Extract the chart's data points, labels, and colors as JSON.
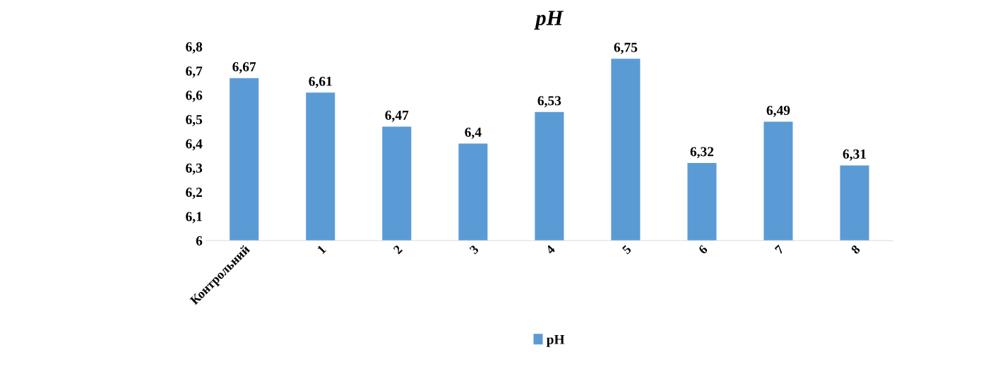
{
  "chart_data": {
    "type": "bar",
    "title": "pH",
    "categories": [
      "Контрольний",
      "1",
      "2",
      "3",
      "4",
      "5",
      "6",
      "7",
      "8"
    ],
    "series": [
      {
        "name": "pH",
        "color": "#5b9bd5",
        "values": [
          6.67,
          6.61,
          6.47,
          6.4,
          6.53,
          6.75,
          6.32,
          6.49,
          6.31
        ],
        "value_labels": [
          "6,67",
          "6,61",
          "6,47",
          "6,4",
          "6,53",
          "6,75",
          "6,32",
          "6,49",
          "6,31"
        ]
      }
    ],
    "ylim": [
      6,
      6.8
    ],
    "yticks": [
      {
        "value": 6,
        "label": "6"
      },
      {
        "value": 6.1,
        "label": "6,1"
      },
      {
        "value": 6.2,
        "label": "6,2"
      },
      {
        "value": 6.3,
        "label": "6,3"
      },
      {
        "value": 6.4,
        "label": "6,4"
      },
      {
        "value": 6.5,
        "label": "6,5"
      },
      {
        "value": 6.6,
        "label": "6,6"
      },
      {
        "value": 6.7,
        "label": "6,7"
      },
      {
        "value": 6.8,
        "label": "6,8"
      }
    ],
    "legend": "bottom",
    "grid": false
  }
}
